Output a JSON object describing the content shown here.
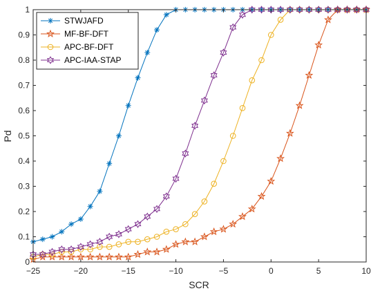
{
  "chart_data": {
    "type": "line",
    "title": "",
    "xlabel": "SCR",
    "ylabel": "Pd",
    "xlim": [
      -25,
      10
    ],
    "ylim": [
      0,
      1
    ],
    "xticks": [
      -25,
      -20,
      -15,
      -10,
      -5,
      0,
      5,
      10
    ],
    "yticks": [
      0,
      0.1,
      0.2,
      0.3,
      0.4,
      0.5,
      0.6,
      0.7,
      0.8,
      0.9,
      1
    ],
    "x": [
      -25,
      -24,
      -23,
      -22,
      -21,
      -20,
      -19,
      -18,
      -17,
      -16,
      -15,
      -14,
      -13,
      -12,
      -11,
      -10,
      -9,
      -8,
      -7,
      -6,
      -5,
      -4,
      -3,
      -2,
      -1,
      0,
      1,
      2,
      3,
      4,
      5,
      6,
      7,
      8,
      9,
      10
    ],
    "grid": false,
    "legend_position": "top-left",
    "series": [
      {
        "name": "STWJAFD",
        "color": "#0072BD",
        "marker": "asterisk",
        "values": [
          0.08,
          0.09,
          0.1,
          0.12,
          0.15,
          0.17,
          0.22,
          0.28,
          0.39,
          0.5,
          0.62,
          0.73,
          0.83,
          0.92,
          0.98,
          1,
          1,
          1,
          1,
          1,
          1,
          1,
          1,
          1,
          1,
          1,
          1,
          1,
          1,
          1,
          1,
          1,
          1,
          1,
          1,
          1
        ]
      },
      {
        "name": "MF-BF-DFT",
        "color": "#D95319",
        "marker": "pentagram",
        "values": [
          0.01,
          0.02,
          0.02,
          0.02,
          0.02,
          0.02,
          0.02,
          0.02,
          0.02,
          0.02,
          0.02,
          0.03,
          0.04,
          0.04,
          0.05,
          0.07,
          0.08,
          0.08,
          0.1,
          0.12,
          0.13,
          0.15,
          0.18,
          0.21,
          0.26,
          0.32,
          0.41,
          0.51,
          0.62,
          0.74,
          0.86,
          0.96,
          1,
          1,
          1,
          1
        ]
      },
      {
        "name": "APC-BF-DFT",
        "color": "#EDB120",
        "marker": "circle",
        "values": [
          0.02,
          0.03,
          0.03,
          0.04,
          0.04,
          0.05,
          0.05,
          0.06,
          0.06,
          0.07,
          0.08,
          0.08,
          0.09,
          0.1,
          0.12,
          0.13,
          0.15,
          0.19,
          0.24,
          0.31,
          0.4,
          0.5,
          0.61,
          0.72,
          0.8,
          0.9,
          0.96,
          1,
          1,
          1,
          1,
          1,
          1,
          1,
          1,
          1
        ]
      },
      {
        "name": "APC-IAA-STAP",
        "color": "#7E2F8E",
        "marker": "hexagram",
        "values": [
          0.03,
          0.03,
          0.04,
          0.05,
          0.05,
          0.06,
          0.07,
          0.08,
          0.1,
          0.11,
          0.13,
          0.15,
          0.18,
          0.21,
          0.26,
          0.33,
          0.43,
          0.54,
          0.64,
          0.74,
          0.83,
          0.93,
          0.98,
          1,
          1,
          1,
          1,
          1,
          1,
          1,
          1,
          1,
          1,
          1,
          1,
          1
        ]
      }
    ]
  }
}
